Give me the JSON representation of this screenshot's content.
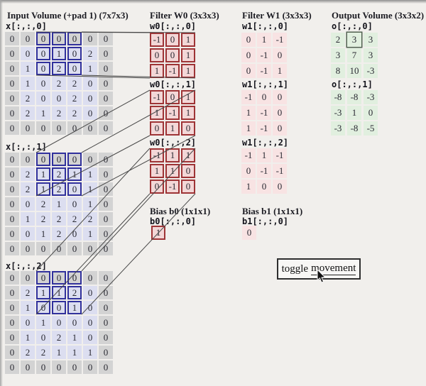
{
  "input": {
    "title": "Input Volume (+pad 1) (7x7x3)",
    "highlight": {
      "row_start": 0,
      "row_end": 2,
      "col_start": 2,
      "col_end": 4
    },
    "slices": [
      {
        "label": "x[:,:,0]",
        "values": [
          [
            0,
            0,
            0,
            0,
            0,
            0,
            0
          ],
          [
            0,
            0,
            0,
            1,
            0,
            2,
            0
          ],
          [
            0,
            1,
            0,
            2,
            0,
            1,
            0
          ],
          [
            0,
            1,
            0,
            2,
            2,
            0,
            0
          ],
          [
            0,
            2,
            0,
            0,
            2,
            0,
            0
          ],
          [
            0,
            2,
            1,
            2,
            2,
            0,
            0
          ],
          [
            0,
            0,
            0,
            0,
            0,
            0,
            0
          ]
        ]
      },
      {
        "label": "x[:,:,1]",
        "values": [
          [
            0,
            0,
            0,
            0,
            0,
            0,
            0
          ],
          [
            0,
            2,
            1,
            2,
            1,
            1,
            0
          ],
          [
            0,
            2,
            1,
            2,
            0,
            1,
            0
          ],
          [
            0,
            0,
            2,
            1,
            0,
            1,
            0
          ],
          [
            0,
            1,
            2,
            2,
            2,
            2,
            0
          ],
          [
            0,
            0,
            1,
            2,
            0,
            1,
            0
          ],
          [
            0,
            0,
            0,
            0,
            0,
            0,
            0
          ]
        ]
      },
      {
        "label": "x[:,:,2]",
        "values": [
          [
            0,
            0,
            0,
            0,
            0,
            0,
            0
          ],
          [
            0,
            2,
            1,
            1,
            2,
            0,
            0
          ],
          [
            0,
            1,
            0,
            0,
            1,
            0,
            0
          ],
          [
            0,
            0,
            1,
            0,
            0,
            0,
            0
          ],
          [
            0,
            1,
            0,
            2,
            1,
            0,
            0
          ],
          [
            0,
            2,
            2,
            1,
            1,
            1,
            0
          ],
          [
            0,
            0,
            0,
            0,
            0,
            0,
            0
          ]
        ]
      }
    ]
  },
  "filter_w0": {
    "title": "Filter W0 (3x3x3)",
    "slices": [
      {
        "label": "w0[:,:,0]",
        "values": [
          [
            -1,
            0,
            1
          ],
          [
            0,
            0,
            1
          ],
          [
            1,
            -1,
            1
          ]
        ]
      },
      {
        "label": "w0[:,:,1]",
        "values": [
          [
            -1,
            0,
            1
          ],
          [
            1,
            -1,
            1
          ],
          [
            0,
            1,
            0
          ]
        ]
      },
      {
        "label": "w0[:,:,2]",
        "values": [
          [
            -1,
            1,
            1
          ],
          [
            1,
            1,
            0
          ],
          [
            0,
            -1,
            0
          ]
        ]
      }
    ]
  },
  "filter_w1": {
    "title": "Filter W1 (3x3x3)",
    "slices": [
      {
        "label": "w1[:,:,0]",
        "values": [
          [
            0,
            1,
            -1
          ],
          [
            0,
            -1,
            0
          ],
          [
            0,
            -1,
            1
          ]
        ]
      },
      {
        "label": "w1[:,:,1]",
        "values": [
          [
            -1,
            0,
            0
          ],
          [
            1,
            -1,
            0
          ],
          [
            1,
            -1,
            0
          ]
        ]
      },
      {
        "label": "w1[:,:,2]",
        "values": [
          [
            -1,
            1,
            -1
          ],
          [
            0,
            -1,
            -1
          ],
          [
            1,
            0,
            0
          ]
        ]
      }
    ]
  },
  "bias_b0": {
    "title": "Bias b0 (1x1x1)",
    "label": "b0[:,:,0]",
    "value": "1"
  },
  "bias_b1": {
    "title": "Bias b1 (1x1x1)",
    "label": "b1[:,:,0]",
    "value": "0"
  },
  "output": {
    "title": "Output Volume (3x3x2)",
    "highlight": {
      "slice": 0,
      "row": 0,
      "col": 1
    },
    "slices": [
      {
        "label": "o[:,:,0]",
        "values": [
          [
            2,
            3,
            3
          ],
          [
            3,
            7,
            3
          ],
          [
            8,
            10,
            -3
          ]
        ]
      },
      {
        "label": "o[:,:,1]",
        "values": [
          [
            -8,
            -8,
            -3
          ],
          [
            -3,
            1,
            0
          ],
          [
            -3,
            -8,
            -5
          ]
        ]
      }
    ]
  },
  "button": {
    "label_prefix": "toggle",
    "label_suffix": "movement"
  },
  "colors": {
    "page_bg": "#f1efec",
    "input_cell": "#dcdef0",
    "pad_cell": "#d3d3d3",
    "input_highlight_border": "#31319c",
    "w0_cell": "#f3d7d7",
    "w0_border": "#9e3436",
    "w1_cell": "#f8e3e3",
    "output_cell": "#e1efdf",
    "output_highlight_border": "#50604f",
    "connector_line": "#4a4a4a"
  }
}
